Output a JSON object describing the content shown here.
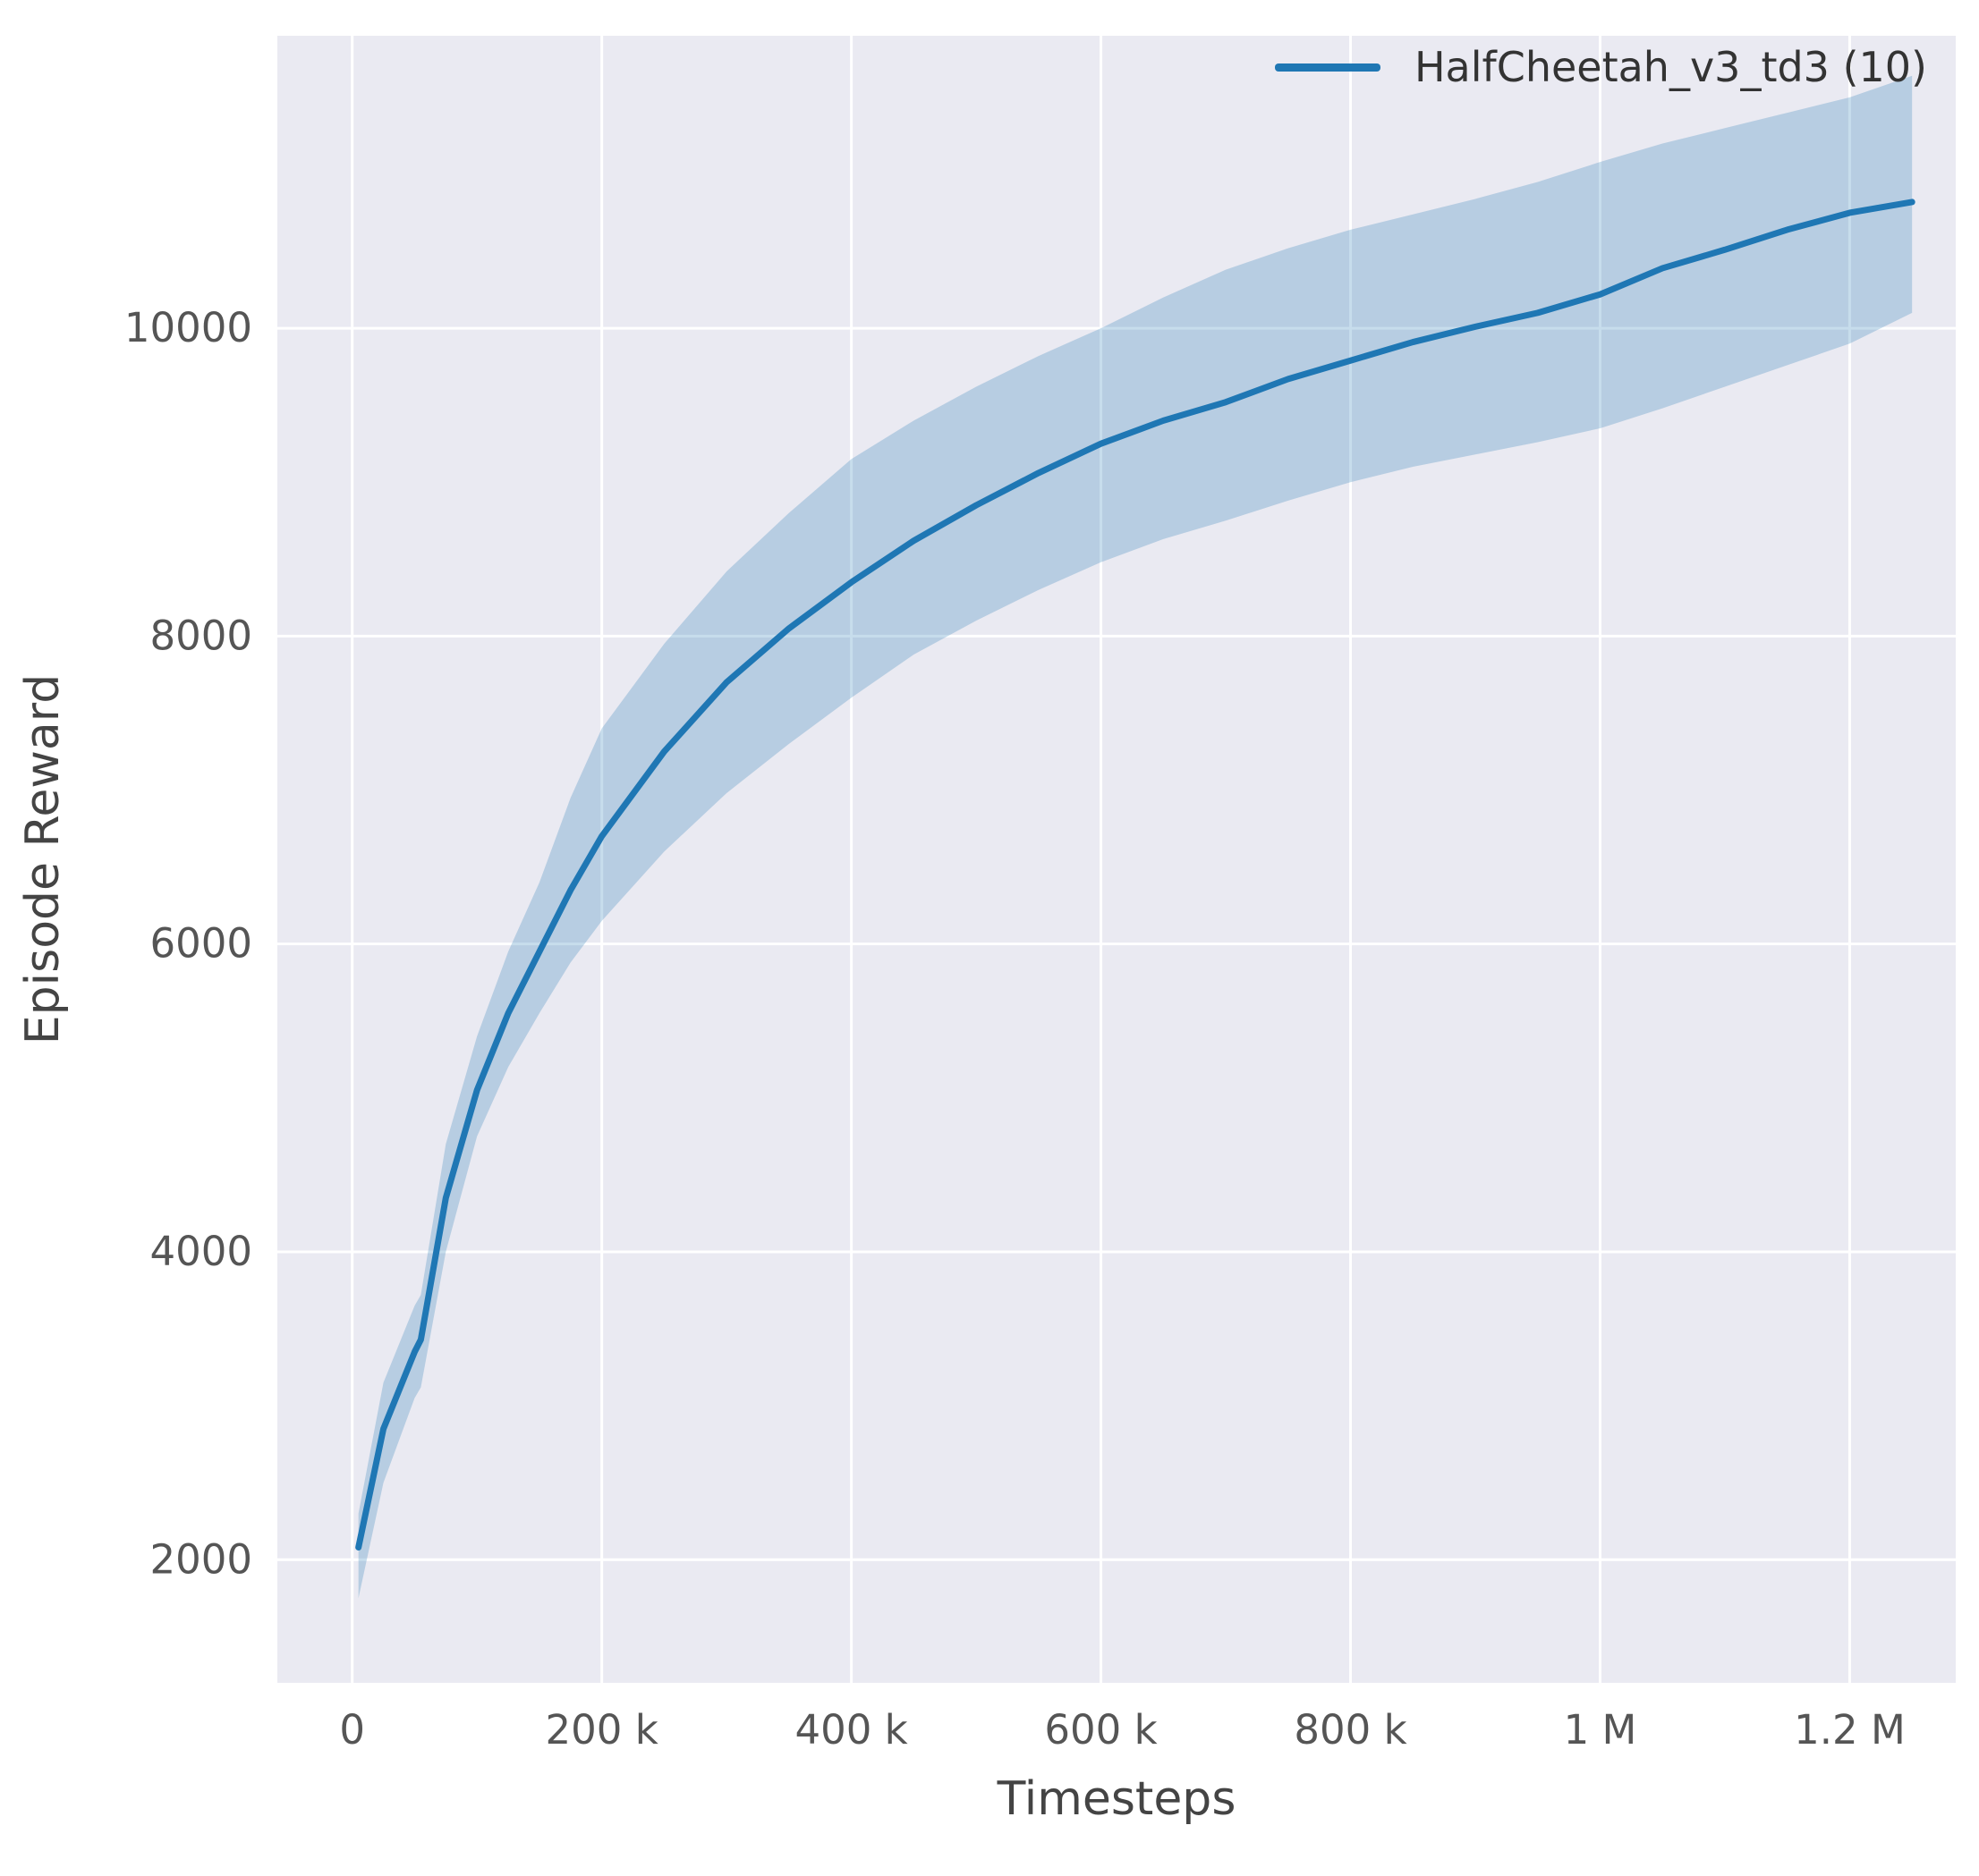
{
  "style": {
    "figure_bg": "#ffffff",
    "plot_bg": "#eaeaf2",
    "grid_color": "#ffffff",
    "line_color": "#1f77b4",
    "band_color": "#1f77b4",
    "band_opacity": 0.25,
    "tick_color": "#555555",
    "axis_label_color": "#444444"
  },
  "chart_data": {
    "type": "line",
    "title": "",
    "xlabel": "Timesteps",
    "ylabel": "Episode Reward",
    "xlim": [
      -60000,
      1285000
    ],
    "ylim": [
      1200,
      11900
    ],
    "grid": true,
    "legend_position": "upper right",
    "xticks": {
      "values": [
        0,
        200000,
        400000,
        600000,
        800000,
        1000000,
        1200000
      ],
      "labels": [
        "0",
        "200 k",
        "400 k",
        "600 k",
        "800 k",
        "1 M",
        "1.2 M"
      ]
    },
    "yticks": {
      "values": [
        2000,
        4000,
        6000,
        8000,
        10000
      ],
      "labels": [
        "2000",
        "4000",
        "6000",
        "8000",
        "10000"
      ]
    },
    "series": [
      {
        "name": "HalfCheetah_v3_td3 (10)",
        "x": [
          5000,
          25000,
          50000,
          55000,
          75000,
          100000,
          125000,
          150000,
          175000,
          200000,
          250000,
          300000,
          350000,
          400000,
          450000,
          500000,
          550000,
          600000,
          650000,
          700000,
          750000,
          800000,
          850000,
          900000,
          950000,
          1000000,
          1050000,
          1100000,
          1150000,
          1200000,
          1250000
        ],
        "mean": [
          2080,
          2850,
          3350,
          3430,
          4350,
          5050,
          5550,
          5950,
          6350,
          6700,
          7250,
          7700,
          8050,
          8350,
          8620,
          8850,
          9060,
          9250,
          9400,
          9520,
          9670,
          9790,
          9910,
          10010,
          10100,
          10220,
          10390,
          10510,
          10640,
          10750,
          10820
        ],
        "lower": [
          1750,
          2500,
          3050,
          3120,
          4000,
          4750,
          5200,
          5550,
          5880,
          6150,
          6600,
          6980,
          7300,
          7600,
          7880,
          8100,
          8300,
          8480,
          8630,
          8750,
          8880,
          9000,
          9100,
          9180,
          9260,
          9350,
          9480,
          9620,
          9760,
          9900,
          10100
        ],
        "upper": [
          2300,
          3150,
          3650,
          3720,
          4700,
          5400,
          5950,
          6400,
          6950,
          7400,
          7950,
          8420,
          8800,
          9150,
          9400,
          9620,
          9820,
          10000,
          10200,
          10380,
          10520,
          10640,
          10740,
          10840,
          10950,
          11080,
          11200,
          11300,
          11400,
          11500,
          11640
        ]
      }
    ]
  }
}
